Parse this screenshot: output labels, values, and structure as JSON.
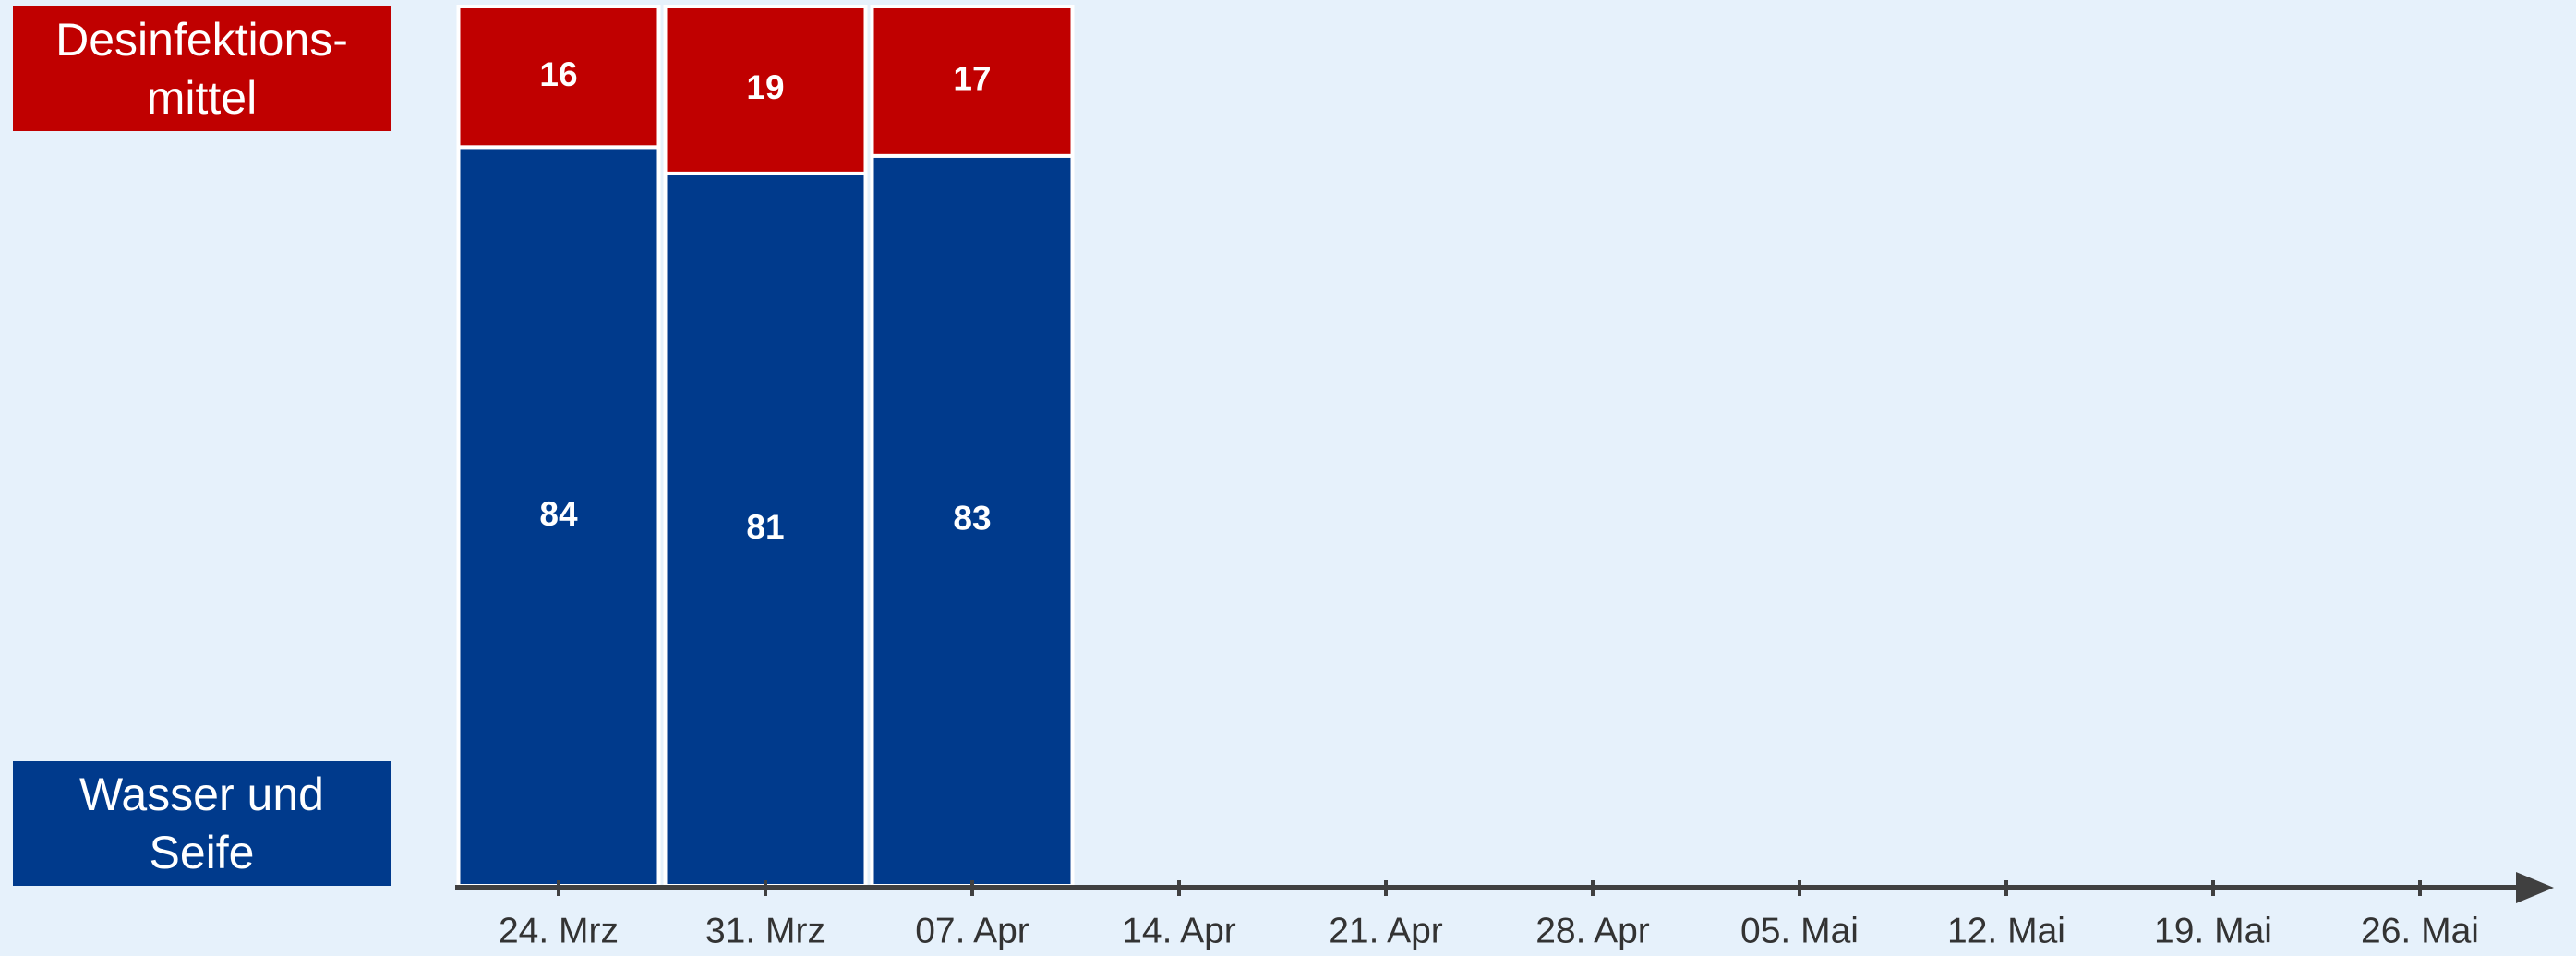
{
  "chart_data": {
    "type": "stacked_bar",
    "categories": [
      "24. Mrz",
      "31. Mrz",
      "07. Apr",
      "14. Apr",
      "21. Apr",
      "28. Apr",
      "05. Mai",
      "12. Mai",
      "19. Mai",
      "26. Mai"
    ],
    "series": [
      {
        "name": "Wasser und Seife",
        "color": "#003a8c",
        "values": [
          84,
          81,
          83,
          null,
          null,
          null,
          null,
          null,
          null,
          null
        ]
      },
      {
        "name": "Desinfektions-mittel",
        "color": "#c00000",
        "values": [
          16,
          19,
          17,
          null,
          null,
          null,
          null,
          null,
          null,
          null
        ]
      }
    ],
    "ylim": [
      0,
      100
    ]
  }
}
